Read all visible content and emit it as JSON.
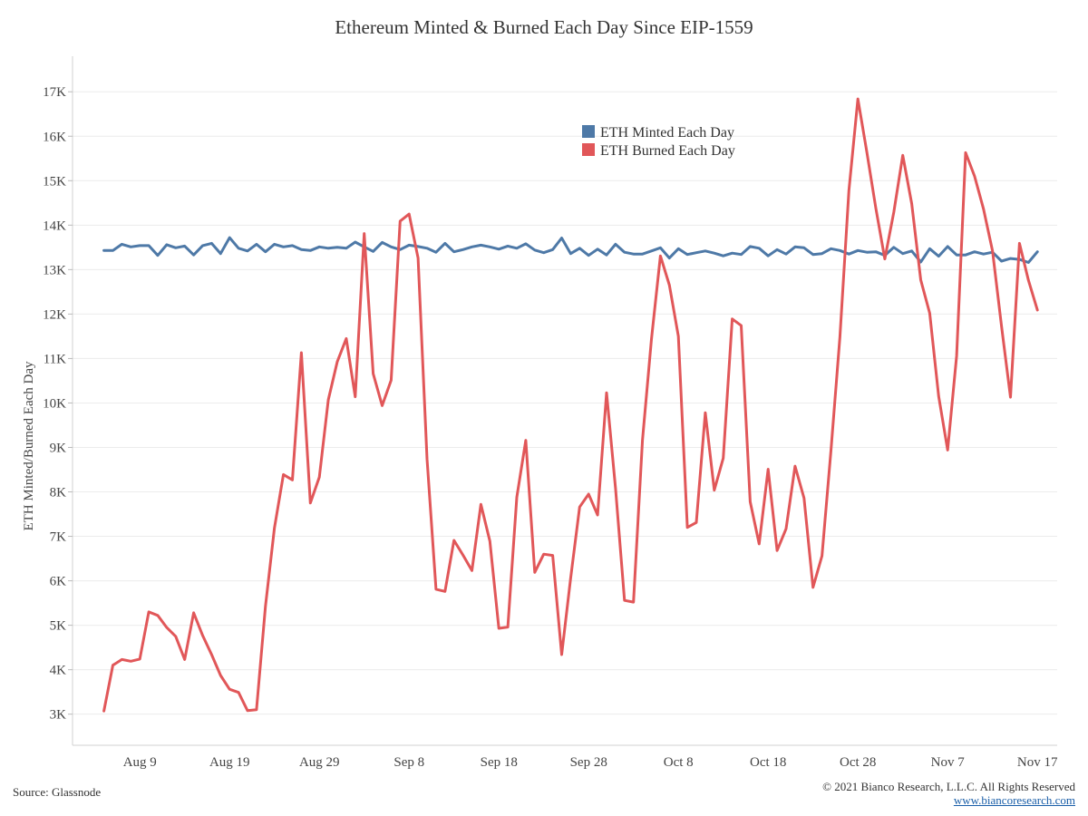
{
  "chart_data": {
    "type": "line",
    "title": "Ethereum Minted & Burned Each Day Since EIP-1559",
    "ylabel": "ETH Minted/Burned Each Day",
    "xlabel": "",
    "ylim": [
      2300,
      17800
    ],
    "y_ticks": [
      3000,
      4000,
      5000,
      6000,
      7000,
      8000,
      9000,
      10000,
      11000,
      12000,
      13000,
      14000,
      15000,
      16000,
      17000
    ],
    "y_tick_labels": [
      "3K",
      "4K",
      "5K",
      "6K",
      "7K",
      "8K",
      "9K",
      "10K",
      "11K",
      "12K",
      "13K",
      "14K",
      "15K",
      "16K",
      "17K"
    ],
    "x_range": [
      "2021-08-05",
      "2021-11-18"
    ],
    "x_ticks": [
      "2021-08-09",
      "2021-08-19",
      "2021-08-29",
      "2021-09-08",
      "2021-09-18",
      "2021-09-28",
      "2021-10-08",
      "2021-10-18",
      "2021-10-28",
      "2021-11-07",
      "2021-11-17"
    ],
    "x_tick_labels": [
      "Aug 9",
      "Aug 19",
      "Aug 29",
      "Sep 8",
      "Sep 18",
      "Sep 28",
      "Oct 8",
      "Oct 18",
      "Oct 28",
      "Nov 7",
      "Nov 17"
    ],
    "grid": "horizontal",
    "legend_position": "top-center",
    "series": [
      {
        "name": "ETH Minted Each Day",
        "color": "#4e79a7",
        "points": [
          [
            "2021-08-05",
            13430
          ],
          [
            "2021-08-06",
            13430
          ],
          [
            "2021-08-07",
            13570
          ],
          [
            "2021-08-08",
            13510
          ],
          [
            "2021-08-09",
            13540
          ],
          [
            "2021-08-10",
            13540
          ],
          [
            "2021-08-11",
            13320
          ],
          [
            "2021-08-12",
            13560
          ],
          [
            "2021-08-13",
            13490
          ],
          [
            "2021-08-14",
            13530
          ],
          [
            "2021-08-15",
            13330
          ],
          [
            "2021-08-16",
            13540
          ],
          [
            "2021-08-17",
            13590
          ],
          [
            "2021-08-18",
            13360
          ],
          [
            "2021-08-19",
            13720
          ],
          [
            "2021-08-20",
            13480
          ],
          [
            "2021-08-21",
            13420
          ],
          [
            "2021-08-22",
            13570
          ],
          [
            "2021-08-23",
            13400
          ],
          [
            "2021-08-24",
            13570
          ],
          [
            "2021-08-25",
            13510
          ],
          [
            "2021-08-26",
            13540
          ],
          [
            "2021-08-27",
            13450
          ],
          [
            "2021-08-28",
            13430
          ],
          [
            "2021-08-29",
            13510
          ],
          [
            "2021-08-30",
            13480
          ],
          [
            "2021-08-31",
            13500
          ],
          [
            "2021-09-01",
            13480
          ],
          [
            "2021-09-02",
            13620
          ],
          [
            "2021-09-03",
            13510
          ],
          [
            "2021-09-04",
            13410
          ],
          [
            "2021-09-05",
            13610
          ],
          [
            "2021-09-06",
            13510
          ],
          [
            "2021-09-07",
            13450
          ],
          [
            "2021-09-08",
            13550
          ],
          [
            "2021-09-09",
            13520
          ],
          [
            "2021-09-10",
            13480
          ],
          [
            "2021-09-11",
            13390
          ],
          [
            "2021-09-12",
            13590
          ],
          [
            "2021-09-13",
            13400
          ],
          [
            "2021-09-14",
            13450
          ],
          [
            "2021-09-15",
            13510
          ],
          [
            "2021-09-16",
            13550
          ],
          [
            "2021-09-17",
            13510
          ],
          [
            "2021-09-18",
            13460
          ],
          [
            "2021-09-19",
            13530
          ],
          [
            "2021-09-20",
            13480
          ],
          [
            "2021-09-21",
            13580
          ],
          [
            "2021-09-22",
            13440
          ],
          [
            "2021-09-23",
            13380
          ],
          [
            "2021-09-24",
            13450
          ],
          [
            "2021-09-25",
            13710
          ],
          [
            "2021-09-26",
            13360
          ],
          [
            "2021-09-27",
            13480
          ],
          [
            "2021-09-28",
            13320
          ],
          [
            "2021-09-29",
            13460
          ],
          [
            "2021-09-30",
            13330
          ],
          [
            "2021-10-01",
            13570
          ],
          [
            "2021-10-02",
            13390
          ],
          [
            "2021-10-03",
            13350
          ],
          [
            "2021-10-04",
            13350
          ],
          [
            "2021-10-05",
            13420
          ],
          [
            "2021-10-06",
            13490
          ],
          [
            "2021-10-07",
            13260
          ],
          [
            "2021-10-08",
            13470
          ],
          [
            "2021-10-09",
            13340
          ],
          [
            "2021-10-10",
            13380
          ],
          [
            "2021-10-11",
            13420
          ],
          [
            "2021-10-12",
            13370
          ],
          [
            "2021-10-13",
            13310
          ],
          [
            "2021-10-14",
            13370
          ],
          [
            "2021-10-15",
            13340
          ],
          [
            "2021-10-16",
            13520
          ],
          [
            "2021-10-17",
            13480
          ],
          [
            "2021-10-18",
            13310
          ],
          [
            "2021-10-19",
            13450
          ],
          [
            "2021-10-20",
            13350
          ],
          [
            "2021-10-21",
            13510
          ],
          [
            "2021-10-22",
            13490
          ],
          [
            "2021-10-23",
            13340
          ],
          [
            "2021-10-24",
            13360
          ],
          [
            "2021-10-25",
            13470
          ],
          [
            "2021-10-26",
            13430
          ],
          [
            "2021-10-27",
            13350
          ],
          [
            "2021-10-28",
            13430
          ],
          [
            "2021-10-29",
            13390
          ],
          [
            "2021-10-30",
            13400
          ],
          [
            "2021-10-31",
            13320
          ],
          [
            "2021-11-01",
            13500
          ],
          [
            "2021-11-02",
            13360
          ],
          [
            "2021-11-03",
            13420
          ],
          [
            "2021-11-04",
            13170
          ],
          [
            "2021-11-05",
            13470
          ],
          [
            "2021-11-06",
            13300
          ],
          [
            "2021-11-07",
            13520
          ],
          [
            "2021-11-08",
            13330
          ],
          [
            "2021-11-09",
            13330
          ],
          [
            "2021-11-10",
            13400
          ],
          [
            "2021-11-11",
            13350
          ],
          [
            "2021-11-12",
            13390
          ],
          [
            "2021-11-13",
            13190
          ],
          [
            "2021-11-14",
            13250
          ],
          [
            "2021-11-15",
            13230
          ],
          [
            "2021-11-16",
            13160
          ],
          [
            "2021-11-17",
            13400
          ]
        ]
      },
      {
        "name": "ETH Burned Each Day",
        "color": "#e15759",
        "points": [
          [
            "2021-08-05",
            3070
          ],
          [
            "2021-08-06",
            4100
          ],
          [
            "2021-08-07",
            4230
          ],
          [
            "2021-08-08",
            4190
          ],
          [
            "2021-08-09",
            4240
          ],
          [
            "2021-08-10",
            5300
          ],
          [
            "2021-08-11",
            5220
          ],
          [
            "2021-08-12",
            4950
          ],
          [
            "2021-08-13",
            4750
          ],
          [
            "2021-08-14",
            4230
          ],
          [
            "2021-08-15",
            5280
          ],
          [
            "2021-08-16",
            4770
          ],
          [
            "2021-08-17",
            4340
          ],
          [
            "2021-08-18",
            3870
          ],
          [
            "2021-08-19",
            3560
          ],
          [
            "2021-08-20",
            3490
          ],
          [
            "2021-08-21",
            3080
          ],
          [
            "2021-08-22",
            3100
          ],
          [
            "2021-08-23",
            5430
          ],
          [
            "2021-08-24",
            7190
          ],
          [
            "2021-08-25",
            8390
          ],
          [
            "2021-08-26",
            8270
          ],
          [
            "2021-08-27",
            11130
          ],
          [
            "2021-08-28",
            7750
          ],
          [
            "2021-08-29",
            8330
          ],
          [
            "2021-08-30",
            10070
          ],
          [
            "2021-08-31",
            10930
          ],
          [
            "2021-09-01",
            11450
          ],
          [
            "2021-09-02",
            10140
          ],
          [
            "2021-09-03",
            13810
          ],
          [
            "2021-09-04",
            10660
          ],
          [
            "2021-09-05",
            9940
          ],
          [
            "2021-09-06",
            10510
          ],
          [
            "2021-09-07",
            14090
          ],
          [
            "2021-09-08",
            14250
          ],
          [
            "2021-09-09",
            13260
          ],
          [
            "2021-09-10",
            8740
          ],
          [
            "2021-09-11",
            5810
          ],
          [
            "2021-09-12",
            5760
          ],
          [
            "2021-09-13",
            6910
          ],
          [
            "2021-09-14",
            6580
          ],
          [
            "2021-09-15",
            6230
          ],
          [
            "2021-09-16",
            7720
          ],
          [
            "2021-09-17",
            6890
          ],
          [
            "2021-09-18",
            4930
          ],
          [
            "2021-09-19",
            4960
          ],
          [
            "2021-09-20",
            7880
          ],
          [
            "2021-09-21",
            9160
          ],
          [
            "2021-09-22",
            6190
          ],
          [
            "2021-09-23",
            6600
          ],
          [
            "2021-09-24",
            6570
          ],
          [
            "2021-09-25",
            4340
          ],
          [
            "2021-09-26",
            6060
          ],
          [
            "2021-09-27",
            7660
          ],
          [
            "2021-09-28",
            7950
          ],
          [
            "2021-09-29",
            7480
          ],
          [
            "2021-09-30",
            10230
          ],
          [
            "2021-10-01",
            8080
          ],
          [
            "2021-10-02",
            5560
          ],
          [
            "2021-10-03",
            5520
          ],
          [
            "2021-10-04",
            9160
          ],
          [
            "2021-10-05",
            11430
          ],
          [
            "2021-10-06",
            13310
          ],
          [
            "2021-10-07",
            12650
          ],
          [
            "2021-10-08",
            11500
          ],
          [
            "2021-10-09",
            7200
          ],
          [
            "2021-10-10",
            7310
          ],
          [
            "2021-10-11",
            9780
          ],
          [
            "2021-10-12",
            8040
          ],
          [
            "2021-10-13",
            8760
          ],
          [
            "2021-10-14",
            11890
          ],
          [
            "2021-10-15",
            11740
          ],
          [
            "2021-10-16",
            7780
          ],
          [
            "2021-10-17",
            6830
          ],
          [
            "2021-10-18",
            8510
          ],
          [
            "2021-10-19",
            6680
          ],
          [
            "2021-10-20",
            7170
          ],
          [
            "2021-10-21",
            8580
          ],
          [
            "2021-10-22",
            7860
          ],
          [
            "2021-10-23",
            5850
          ],
          [
            "2021-10-24",
            6560
          ],
          [
            "2021-10-25",
            8930
          ],
          [
            "2021-10-26",
            11490
          ],
          [
            "2021-10-27",
            14780
          ],
          [
            "2021-10-28",
            16840
          ],
          [
            "2021-10-29",
            15640
          ],
          [
            "2021-10-30",
            14380
          ],
          [
            "2021-10-31",
            13240
          ],
          [
            "2021-11-01",
            14290
          ],
          [
            "2021-11-02",
            15570
          ],
          [
            "2021-11-03",
            14480
          ],
          [
            "2021-11-04",
            12770
          ],
          [
            "2021-11-05",
            12020
          ],
          [
            "2021-11-06",
            10150
          ],
          [
            "2021-11-07",
            8940
          ],
          [
            "2021-11-08",
            11060
          ],
          [
            "2021-11-09",
            15630
          ],
          [
            "2021-11-10",
            15100
          ],
          [
            "2021-11-11",
            14360
          ],
          [
            "2021-11-12",
            13420
          ],
          [
            "2021-11-13",
            11730
          ],
          [
            "2021-11-14",
            10130
          ],
          [
            "2021-11-15",
            13590
          ],
          [
            "2021-11-16",
            12760
          ],
          [
            "2021-11-17",
            12090
          ]
        ]
      }
    ]
  },
  "footer": {
    "source": "Source: Glassnode",
    "copyright": "© 2021 Bianco Research, L.L.C. All Rights Reserved",
    "website": "www.biancoresearch.com"
  }
}
